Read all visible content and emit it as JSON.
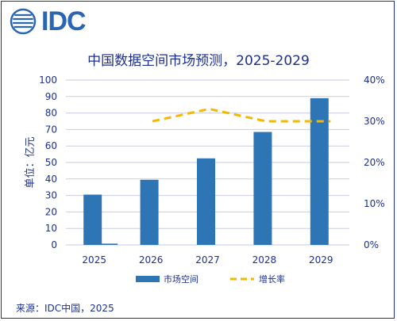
{
  "logo": {
    "text": "IDC"
  },
  "source_note": "来源：IDC中国，2025",
  "colors": {
    "bar": "#2e75b6",
    "line": "#f5b800",
    "text": "#1c2f8f",
    "grid": "#c9cbe8"
  },
  "chart_data": {
    "type": "bar",
    "title": "中国数据空间市场预测，2025-2029",
    "categories": [
      "2025",
      "2026",
      "2027",
      "2028",
      "2029"
    ],
    "ylabel": "单位：亿元",
    "ylim": [
      0,
      100
    ],
    "yticks": [
      "0",
      "10",
      "20",
      "30",
      "40",
      "50",
      "60",
      "70",
      "80",
      "90",
      "100"
    ],
    "y2lim": [
      0,
      40
    ],
    "y2ticks": [
      "0%",
      "10%",
      "20%",
      "30%",
      "40%"
    ],
    "series": [
      {
        "name": "市场空间",
        "type": "bar",
        "axis": "left",
        "values": [
          30.5,
          39.5,
          52.5,
          68.5,
          89
        ]
      },
      {
        "name": "增长率",
        "type": "line",
        "style": "dashed",
        "axis": "right",
        "values": [
          null,
          30,
          33,
          30,
          30
        ]
      }
    ],
    "extra_marks": [
      {
        "category": "2025",
        "value": 0.3,
        "note": "small growth-rate bar"
      }
    ],
    "grid": true,
    "legend": "bottom-center"
  }
}
